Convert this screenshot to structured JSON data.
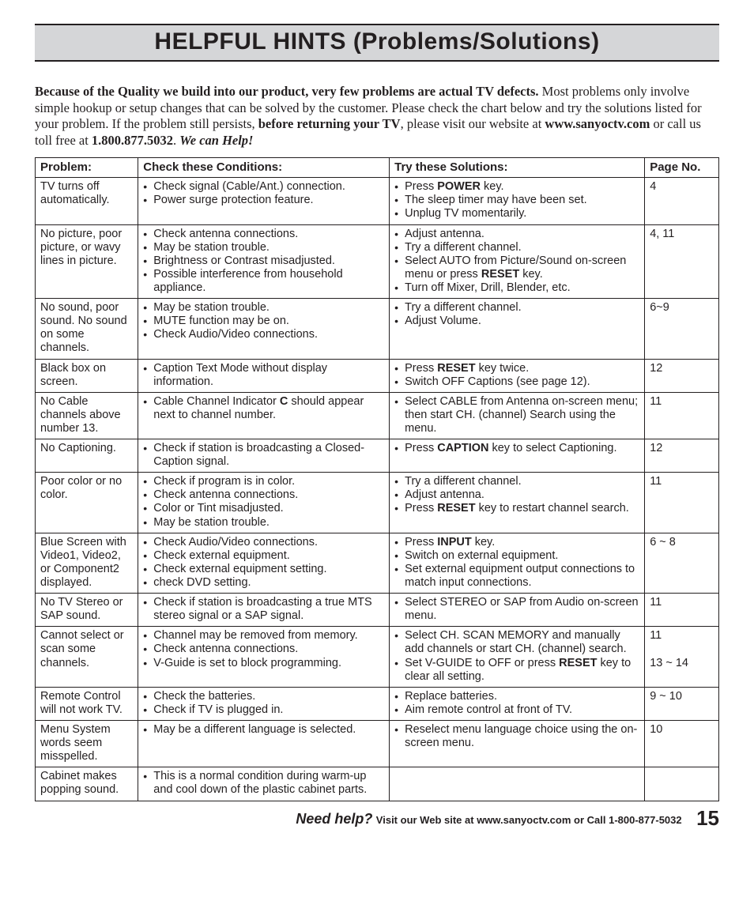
{
  "title": "HELPFUL HINTS (Problems/Solutions)",
  "intro": {
    "lead_bold": "Because of the Quality we build into our product, very few problems are actual TV defects.",
    "body1": " Most problems only involve simple hookup or setup changes that can be solved by the customer. Please check the chart below and try the solutions listed for your problem. If the problem still persists, ",
    "mid_bold": "before returning your TV",
    "body2": ", please visit our website at ",
    "url_bold": "www.sanyoctv.com",
    "body3": " or call us toll free at ",
    "phone_bold": "1.800.877.5032",
    "body4": ". ",
    "tail_italic": "We can Help!"
  },
  "headers": {
    "problem": "Problem:",
    "check": "Check these Conditions:",
    "solution": "Try these Solutions:",
    "page": "Page No."
  },
  "rows": [
    {
      "problem": "TV turns off automatically.",
      "check": [
        "Check signal (Cable/Ant.) connection.",
        "Power surge protection feature."
      ],
      "solution": [
        "Press <b>POWER</b> key.",
        "The sleep timer may have been set.",
        "Unplug TV momentarily."
      ],
      "page": "4"
    },
    {
      "problem": "No picture, poor picture, or wavy lines in picture.",
      "check": [
        "Check antenna connections.",
        "May be station trouble.",
        "Brightness or Contrast misadjusted.",
        "Possible interference from household appliance."
      ],
      "solution": [
        "Adjust antenna.",
        "Try a different channel.",
        "Select AUTO from Picture/Sound on-screen menu or press <b>RESET</b> key.",
        "Turn off Mixer, Drill, Blender, etc."
      ],
      "page": "4, 11"
    },
    {
      "problem": "No sound, poor sound. No sound on some channels.",
      "check": [
        "May be station trouble.",
        "MUTE function may be on.",
        "Check Audio/Video connections."
      ],
      "solution": [
        "Try a different channel.",
        "Adjust Volume."
      ],
      "page": "6~9"
    },
    {
      "problem": "Black box on screen.",
      "check": [
        "Caption Text Mode without display information."
      ],
      "solution": [
        "Press <b>RESET</b> key twice.",
        "Switch OFF Captions (see page 12)."
      ],
      "page": "12"
    },
    {
      "problem": "No Cable channels above number 13.",
      "check": [
        "Cable Channel Indicator <b>C</b> should appear next to channel number."
      ],
      "solution": [
        "Select CABLE from Antenna on-screen menu; then start CH. (channel) Search using the menu."
      ],
      "page": "11"
    },
    {
      "problem": "No Captioning.",
      "check": [
        "Check if station is broadcasting a Closed-Caption signal."
      ],
      "solution": [
        "Press <b>CAPTION</b> key to select Captioning."
      ],
      "page": "12"
    },
    {
      "problem": "Poor color or no color.",
      "check": [
        "Check if program is in color.",
        "Check antenna connections.",
        "Color or Tint misadjusted.",
        "May be station trouble."
      ],
      "solution": [
        "Try a different channel.",
        "Adjust antenna.",
        "Press <b>RESET</b> key to restart channel search."
      ],
      "page": "11"
    },
    {
      "problem": "Blue Screen with Video1, Video2, or Component2 displayed.",
      "check": [
        "Check Audio/Video connections.",
        "Check external equipment.",
        "Check external equipment setting.",
        "check DVD setting."
      ],
      "solution": [
        "Press <b>INPUT</b> key.",
        "Switch on external equipment.",
        "Set external equipment output connections to match input connections."
      ],
      "page": "6 ~ 8"
    },
    {
      "problem": "No TV Stereo or SAP sound.",
      "check": [
        "Check if station is broadcasting a true MTS stereo signal or a SAP signal."
      ],
      "solution": [
        "Select STEREO or SAP from Audio on-screen menu."
      ],
      "page": "11"
    },
    {
      "problem": "Cannot select or scan some channels.",
      "check": [
        "Channel may be removed from memory.",
        "Check antenna connections.",
        "V-Guide is set to block programming."
      ],
      "solution": [
        "Select CH. SCAN MEMORY and manually add channels or start CH. (channel) search.",
        "Set V-GUIDE to OFF or press <b>RESET</b> key to clear all setting."
      ],
      "page": "11<br><br>13 ~ 14"
    },
    {
      "problem": "Remote Control will not work TV.",
      "check": [
        "Check the batteries.",
        "Check if TV is plugged in."
      ],
      "solution": [
        "Replace batteries.",
        "Aim remote control at front of TV."
      ],
      "page": "9 ~ 10"
    },
    {
      "problem": "Menu System words seem misspelled.",
      "check": [
        "May be a different language is selected."
      ],
      "solution": [
        "Reselect menu language choice using the on-screen menu."
      ],
      "page": "10"
    },
    {
      "problem": "Cabinet makes popping sound.",
      "check": [
        "This is a normal condition during warm-up and cool down of the plastic cabinet parts."
      ],
      "solution": [],
      "page": ""
    }
  ],
  "footer": {
    "need": "Need help?",
    "visit": " Visit our Web site at ",
    "url": " www.sanyoctv.com ",
    "or": " or Call ",
    "phone": "1-800-877-5032",
    "page_number": "15"
  }
}
